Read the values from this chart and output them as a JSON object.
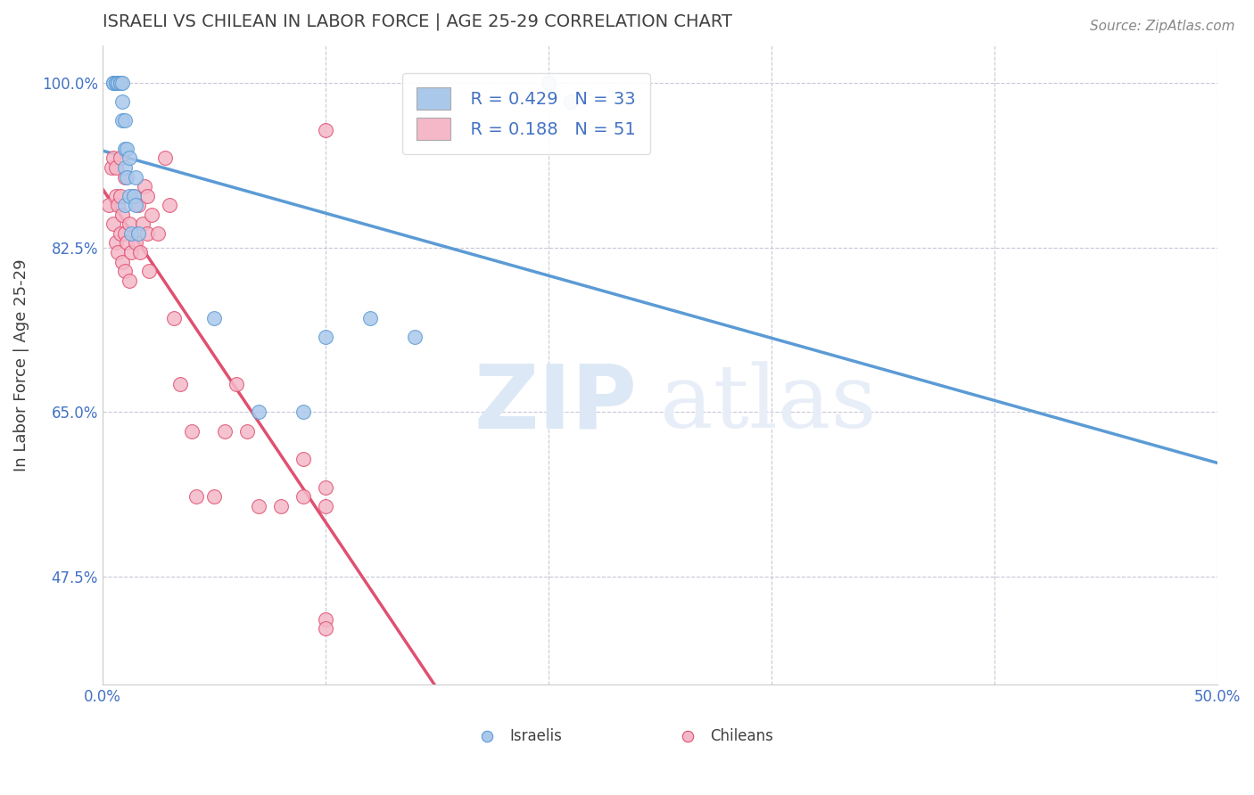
{
  "title": "ISRAELI VS CHILEAN IN LABOR FORCE | AGE 25-29 CORRELATION CHART",
  "source": "Source: ZipAtlas.com",
  "xlabel": "",
  "ylabel": "In Labor Force | Age 25-29",
  "xlim": [
    0.0,
    0.5
  ],
  "ylim": [
    0.36,
    1.04
  ],
  "xticks": [
    0.0,
    0.1,
    0.2,
    0.3,
    0.4,
    0.5
  ],
  "xticklabels": [
    "0.0%",
    "",
    "",
    "",
    "",
    "50.0%"
  ],
  "yticks": [
    0.475,
    0.65,
    0.825,
    1.0
  ],
  "yticklabels": [
    "47.5%",
    "65.0%",
    "82.5%",
    "100.0%"
  ],
  "R_israeli": 0.429,
  "N_israeli": 33,
  "R_chilean": 0.188,
  "N_chilean": 51,
  "israeli_color": "#aac8ea",
  "chilean_color": "#f4b8c8",
  "israeli_line_color": "#5b9bd5",
  "chilean_line_color": "#e05070",
  "legend_label_israeli": "Israelis",
  "legend_label_chilean": "Chileans",
  "background_color": "#ffffff",
  "grid_color": "#c8c8d8",
  "title_color": "#404040",
  "axis_label_color": "#404040",
  "tick_label_color": "#4472c4",
  "watermark_zip": "ZIP",
  "watermark_atlas": "atlas",
  "watermark_color": "#dce8f5",
  "israeli_x": [
    0.005,
    0.005,
    0.006,
    0.006,
    0.007,
    0.007,
    0.008,
    0.008,
    0.008,
    0.009,
    0.009,
    0.009,
    0.01,
    0.01,
    0.01,
    0.01,
    0.011,
    0.011,
    0.012,
    0.012,
    0.013,
    0.014,
    0.015,
    0.015,
    0.016,
    0.05,
    0.07,
    0.09,
    0.1,
    0.12,
    0.14,
    0.2,
    0.21
  ],
  "israeli_y": [
    1.0,
    1.0,
    1.0,
    1.0,
    1.0,
    1.0,
    1.0,
    1.0,
    1.0,
    0.96,
    0.98,
    1.0,
    0.87,
    0.91,
    0.93,
    0.96,
    0.9,
    0.93,
    0.88,
    0.92,
    0.84,
    0.88,
    0.87,
    0.9,
    0.84,
    0.75,
    0.65,
    0.65,
    0.73,
    0.75,
    0.73,
    1.0,
    0.98
  ],
  "chilean_x": [
    0.003,
    0.004,
    0.005,
    0.005,
    0.006,
    0.006,
    0.006,
    0.007,
    0.007,
    0.008,
    0.008,
    0.008,
    0.009,
    0.009,
    0.01,
    0.01,
    0.01,
    0.011,
    0.012,
    0.012,
    0.013,
    0.014,
    0.015,
    0.016,
    0.017,
    0.018,
    0.019,
    0.02,
    0.02,
    0.021,
    0.022,
    0.025,
    0.028,
    0.03,
    0.032,
    0.035,
    0.04,
    0.042,
    0.05,
    0.055,
    0.06,
    0.065,
    0.07,
    0.08,
    0.09,
    0.09,
    0.1,
    0.1,
    0.1,
    0.1,
    0.1
  ],
  "chilean_y": [
    0.87,
    0.91,
    0.85,
    0.92,
    0.83,
    0.88,
    0.91,
    0.82,
    0.87,
    0.84,
    0.88,
    0.92,
    0.81,
    0.86,
    0.8,
    0.84,
    0.9,
    0.83,
    0.79,
    0.85,
    0.82,
    0.88,
    0.83,
    0.87,
    0.82,
    0.85,
    0.89,
    0.84,
    0.88,
    0.8,
    0.86,
    0.84,
    0.92,
    0.87,
    0.75,
    0.68,
    0.63,
    0.56,
    0.56,
    0.63,
    0.68,
    0.63,
    0.55,
    0.55,
    0.6,
    0.56,
    0.43,
    0.42,
    0.55,
    0.57,
    0.95
  ]
}
